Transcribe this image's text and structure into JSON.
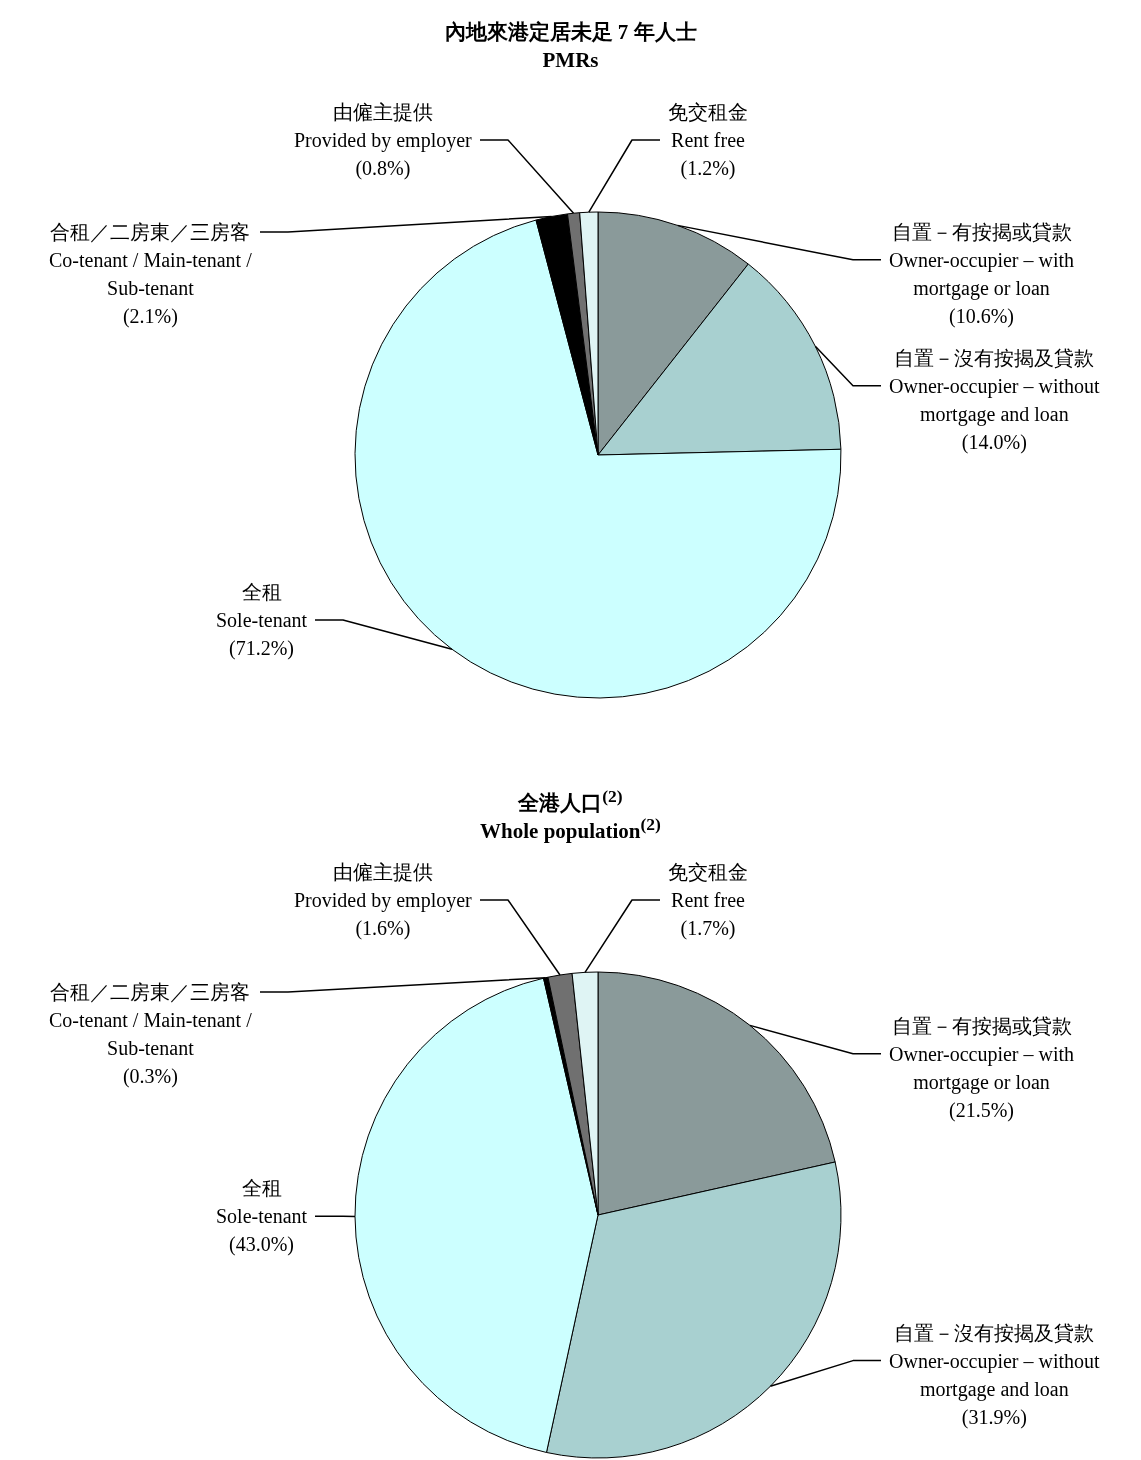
{
  "chart_data": [
    {
      "type": "pie",
      "title": "內地來港定居未足 7 年人士",
      "subtitle": "PMRs",
      "categories": [
        "自置－有按揭或貸款\nOwner-occupier – with\nmortgage or loan",
        "自置－沒有按揭及貸款\nOwner-occupier – without\nmortgage and loan",
        "全租\nSole-tenant",
        "合租／二房東／三房客\nCo-tenant / Main-tenant /\nSub-tenant",
        "由僱主提供\nProvided by employer",
        "免交租金\nRent free"
      ],
      "values": [
        10.6,
        14.0,
        71.2,
        2.1,
        0.8,
        1.2
      ],
      "value_labels": [
        "(10.6%)",
        "(14.0%)",
        "(71.2%)",
        "(2.1%)",
        "(0.8%)",
        "(1.2%)"
      ],
      "colors": [
        "#8a9a9a",
        "#a8d0d0",
        "#ccffff",
        "#000000",
        "#707070",
        "#dff4f4"
      ]
    },
    {
      "type": "pie",
      "title": "全港人口$^{(2)}$",
      "subtitle": "Whole population$^{(2)}$",
      "categories": [
        "自置－有按揭或貸款\nOwner-occupier – with\nmortgage or loan",
        "自置－沒有按揭及貸款\nOwner-occupier – without\nmortgage and loan",
        "全租\nSole-tenant",
        "合租／二房東／三房客\nCo-tenant / Main-tenant /\nSub-tenant",
        "由僱主提供\nProvided by employer",
        "免交租金\nRent free"
      ],
      "values": [
        21.5,
        31.9,
        43.0,
        0.3,
        1.6,
        1.7
      ],
      "value_labels": [
        "(21.5%)",
        "(31.9%)",
        "(43.0%)",
        "(0.3%)",
        "(1.6%)",
        "(1.7%)"
      ],
      "colors": [
        "#8a9a9a",
        "#a8d0d0",
        "#ccffff",
        "#000000",
        "#707070",
        "#dff4f4"
      ]
    }
  ]
}
